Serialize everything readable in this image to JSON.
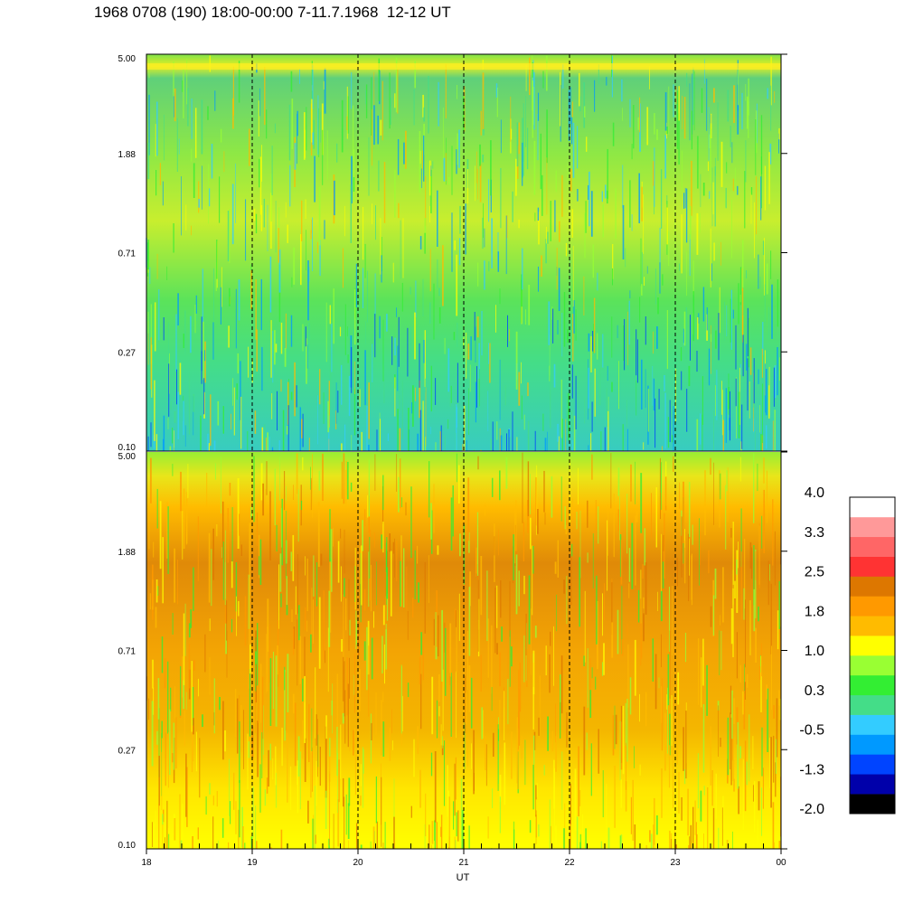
{
  "title": "1968 0708 (190) 18:00-00:00 7-11.7.1968  12-12 UT",
  "chart_data": [
    {
      "type": "heatmap",
      "panel": "top",
      "y_ticks": [
        "5.00",
        "1.88",
        "0.71",
        "0.27",
        "0.10"
      ],
      "ylim": [
        0.1,
        5.0
      ],
      "y_scale": "log",
      "x_ticks": [
        "18",
        "19",
        "20",
        "21",
        "22",
        "23",
        "00"
      ],
      "grid": "dashed vertical lines at each hour",
      "dominant_levels_by_band": [
        {
          "band": "0.10-0.27",
          "level": "-0.5 to 0.3"
        },
        {
          "band": "0.27-0.71",
          "level": "0.3"
        },
        {
          "band": "0.71-1.88",
          "level": "0.3 to 1.0"
        },
        {
          "band": "1.88-5.00",
          "level": "-0.5 to 1.0"
        }
      ]
    },
    {
      "type": "heatmap",
      "panel": "bottom",
      "y_ticks": [
        "5.00",
        "1.88",
        "0.71",
        "0.27",
        "0.10"
      ],
      "ylim": [
        0.1,
        5.0
      ],
      "y_scale": "log",
      "x_ticks": [
        "18",
        "19",
        "20",
        "21",
        "22",
        "23",
        "00"
      ],
      "xlabel": "UT",
      "grid": "dashed vertical lines at each hour",
      "dominant_levels_by_band": [
        {
          "band": "0.10-0.27",
          "level": "1.0"
        },
        {
          "band": "0.27-0.71",
          "level": "1.0 to 1.8"
        },
        {
          "band": "0.71-1.88",
          "level": "1.8 to 2.5"
        },
        {
          "band": "1.88-5.00",
          "level": "0.3 to 1.8"
        }
      ]
    }
  ],
  "colorbar": {
    "labels": [
      "4.0",
      "3.3",
      "2.5",
      "1.8",
      "1.0",
      "0.3",
      "-0.5",
      "-1.3",
      "-2.0"
    ],
    "range": [
      -2.0,
      4.0
    ],
    "colors": [
      "#000000",
      "#0000aa",
      "#0044ff",
      "#0099ff",
      "#33ccff",
      "#44dd88",
      "#33ee33",
      "#99ff33",
      "#ffff00",
      "#ffbb00",
      "#ff9900",
      "#dd7700",
      "#ff3333",
      "#ff6666",
      "#ff9999",
      "#ffffff"
    ]
  }
}
